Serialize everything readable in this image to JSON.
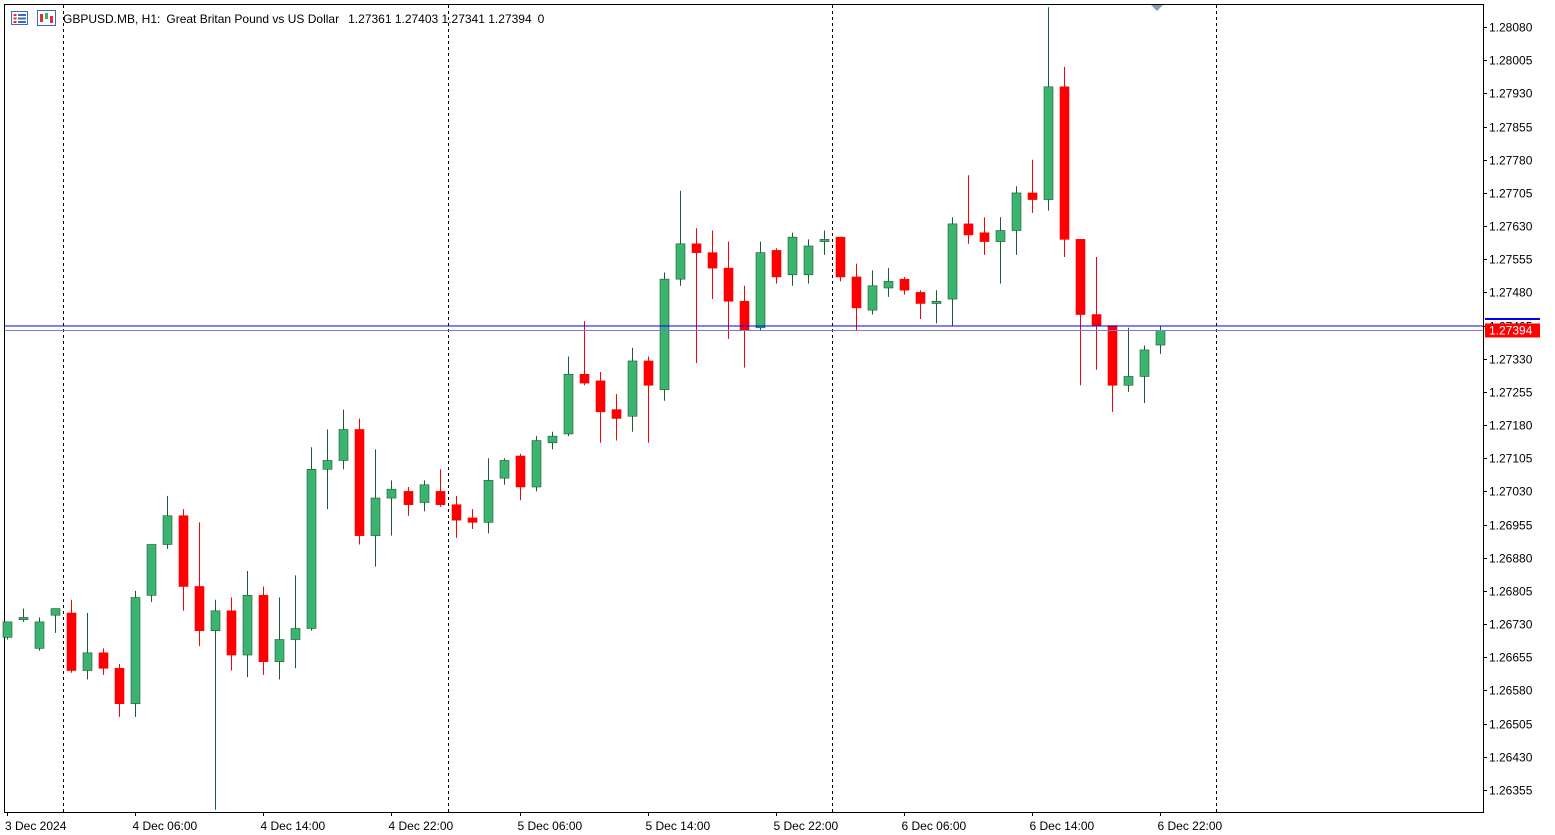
{
  "header": {
    "symbol": "GBPUSD.MB, H1:",
    "description": "Great Britan Pound vs US Dollar",
    "ohlc": "1.27361 1.27403 1.27341 1.27394",
    "extra": "0"
  },
  "icons": [
    "list-icon",
    "chart-window-icon"
  ],
  "colors": {
    "bull": "#3cb371",
    "bear": "#ff0000",
    "ask_line": "#0000ff",
    "bid_line": "#7b7bcf",
    "price_label_bg": "#ff0000",
    "price_label_text": "#ffffff",
    "grid": "#000000",
    "frame": "#000000"
  },
  "chart_data": {
    "type": "candlestick",
    "ylim": [
      1.26305,
      1.2813
    ],
    "y_ticks": [
      "1.28080",
      "1.28005",
      "1.27930",
      "1.27855",
      "1.27780",
      "1.27705",
      "1.27630",
      "1.27555",
      "1.27480",
      "1.27405",
      "1.27330",
      "1.27255",
      "1.27180",
      "1.27105",
      "1.27030",
      "1.26955",
      "1.26880",
      "1.26805",
      "1.26730",
      "1.26655",
      "1.26580",
      "1.26505",
      "1.26430",
      "1.26355"
    ],
    "x_labels": [
      {
        "index": 0,
        "text": "3 Dec 2024"
      },
      {
        "index": 8,
        "text": "4 Dec 06:00"
      },
      {
        "index": 16,
        "text": "4 Dec 14:00"
      },
      {
        "index": 24,
        "text": "4 Dec 22:00"
      },
      {
        "index": 32,
        "text": "5 Dec 06:00"
      },
      {
        "index": 40,
        "text": "5 Dec 14:00"
      },
      {
        "index": 48,
        "text": "5 Dec 22:00"
      },
      {
        "index": 56,
        "text": "6 Dec 06:00"
      },
      {
        "index": 64,
        "text": "6 Dec 14:00"
      },
      {
        "index": 72,
        "text": "6 Dec 22:00"
      }
    ],
    "vertical_separators": [
      2,
      26,
      50,
      74
    ],
    "current_price": "1.27394",
    "ask_price": 1.27404,
    "candles": [
      [
        1.267,
        1.26735,
        1.26695,
        1.26735
      ],
      [
        1.2674,
        1.26765,
        1.26735,
        1.26745
      ],
      [
        1.26675,
        1.26745,
        1.2667,
        1.26735
      ],
      [
        1.2675,
        1.26765,
        1.2671,
        1.26765
      ],
      [
        1.26755,
        1.26785,
        1.2662,
        1.26625
      ],
      [
        1.26625,
        1.26755,
        1.26605,
        1.26665
      ],
      [
        1.26665,
        1.26675,
        1.26615,
        1.2663
      ],
      [
        1.2663,
        1.2664,
        1.2652,
        1.2655
      ],
      [
        1.2655,
        1.26805,
        1.2652,
        1.2679
      ],
      [
        1.26795,
        1.26905,
        1.2678,
        1.2691
      ],
      [
        1.2691,
        1.2702,
        1.269,
        1.26975
      ],
      [
        1.26975,
        1.2699,
        1.2676,
        1.26815
      ],
      [
        1.26815,
        1.2696,
        1.2668,
        1.26715
      ],
      [
        1.26715,
        1.26785,
        1.2631,
        1.2676
      ],
      [
        1.2676,
        1.2679,
        1.26625,
        1.2666
      ],
      [
        1.2666,
        1.2685,
        1.2661,
        1.26795
      ],
      [
        1.26795,
        1.26815,
        1.26615,
        1.26645
      ],
      [
        1.26645,
        1.2679,
        1.26605,
        1.26695
      ],
      [
        1.26695,
        1.2684,
        1.2663,
        1.2672
      ],
      [
        1.2672,
        1.2713,
        1.26715,
        1.2708
      ],
      [
        1.2708,
        1.2717,
        1.2699,
        1.271
      ],
      [
        1.271,
        1.27215,
        1.2708,
        1.2717
      ],
      [
        1.2717,
        1.27195,
        1.2691,
        1.2693
      ],
      [
        1.2693,
        1.27125,
        1.2686,
        1.27015
      ],
      [
        1.27015,
        1.27055,
        1.2693,
        1.27035
      ],
      [
        1.2703,
        1.2704,
        1.26975,
        1.27
      ],
      [
        1.27005,
        1.27055,
        1.26985,
        1.27045
      ],
      [
        1.2703,
        1.2708,
        1.26995,
        1.27
      ],
      [
        1.27,
        1.2702,
        1.26925,
        1.26965
      ],
      [
        1.2697,
        1.2699,
        1.26945,
        1.2696
      ],
      [
        1.2696,
        1.27105,
        1.26935,
        1.27055
      ],
      [
        1.2706,
        1.27105,
        1.27045,
        1.271
      ],
      [
        1.2711,
        1.27115,
        1.2701,
        1.2704
      ],
      [
        1.2704,
        1.27155,
        1.2703,
        1.27145
      ],
      [
        1.2714,
        1.27165,
        1.27125,
        1.27155
      ],
      [
        1.2716,
        1.27335,
        1.27155,
        1.27295
      ],
      [
        1.27295,
        1.27415,
        1.2727,
        1.27275
      ],
      [
        1.2728,
        1.273,
        1.2714,
        1.2721
      ],
      [
        1.27215,
        1.2725,
        1.27145,
        1.27195
      ],
      [
        1.272,
        1.27355,
        1.27165,
        1.27325
      ],
      [
        1.27325,
        1.27335,
        1.2714,
        1.2727
      ],
      [
        1.2726,
        1.27525,
        1.27235,
        1.2751
      ],
      [
        1.2751,
        1.2771,
        1.27495,
        1.2759
      ],
      [
        1.2759,
        1.27625,
        1.2732,
        1.2757
      ],
      [
        1.2757,
        1.2762,
        1.27465,
        1.27535
      ],
      [
        1.27535,
        1.27595,
        1.27375,
        1.2746
      ],
      [
        1.2746,
        1.27495,
        1.2731,
        1.27395
      ],
      [
        1.274,
        1.27595,
        1.27395,
        1.2757
      ],
      [
        1.27575,
        1.2758,
        1.275,
        1.27515
      ],
      [
        1.2752,
        1.27615,
        1.27495,
        1.27605
      ],
      [
        1.2752,
        1.276,
        1.275,
        1.27585
      ],
      [
        1.27595,
        1.2762,
        1.27565,
        1.276
      ],
      [
        1.27605,
        1.27605,
        1.27505,
        1.27515
      ],
      [
        1.27515,
        1.27545,
        1.27395,
        1.27445
      ],
      [
        1.2744,
        1.2753,
        1.2743,
        1.27495
      ],
      [
        1.2749,
        1.27535,
        1.2747,
        1.27505
      ],
      [
        1.2751,
        1.27515,
        1.27475,
        1.27485
      ],
      [
        1.2748,
        1.27485,
        1.2742,
        1.27455
      ],
      [
        1.27455,
        1.27485,
        1.2741,
        1.2746
      ],
      [
        1.27465,
        1.2765,
        1.27405,
        1.27635
      ],
      [
        1.27635,
        1.27745,
        1.2759,
        1.2761
      ],
      [
        1.27615,
        1.2765,
        1.27565,
        1.27595
      ],
      [
        1.27595,
        1.2765,
        1.275,
        1.2762
      ],
      [
        1.2762,
        1.2772,
        1.27565,
        1.27705
      ],
      [
        1.27705,
        1.2778,
        1.2766,
        1.2769
      ],
      [
        1.2769,
        1.28125,
        1.27665,
        1.27945
      ],
      [
        1.27945,
        1.2799,
        1.2756,
        1.276
      ],
      [
        1.276,
        1.276,
        1.2727,
        1.2743
      ],
      [
        1.2743,
        1.2756,
        1.27305,
        1.27405
      ],
      [
        1.27405,
        1.274,
        1.2721,
        1.2727
      ],
      [
        1.2727,
        1.274,
        1.27255,
        1.2729
      ],
      [
        1.2729,
        1.2736,
        1.2723,
        1.2735
      ],
      [
        1.27361,
        1.27403,
        1.27341,
        1.27394
      ]
    ]
  }
}
